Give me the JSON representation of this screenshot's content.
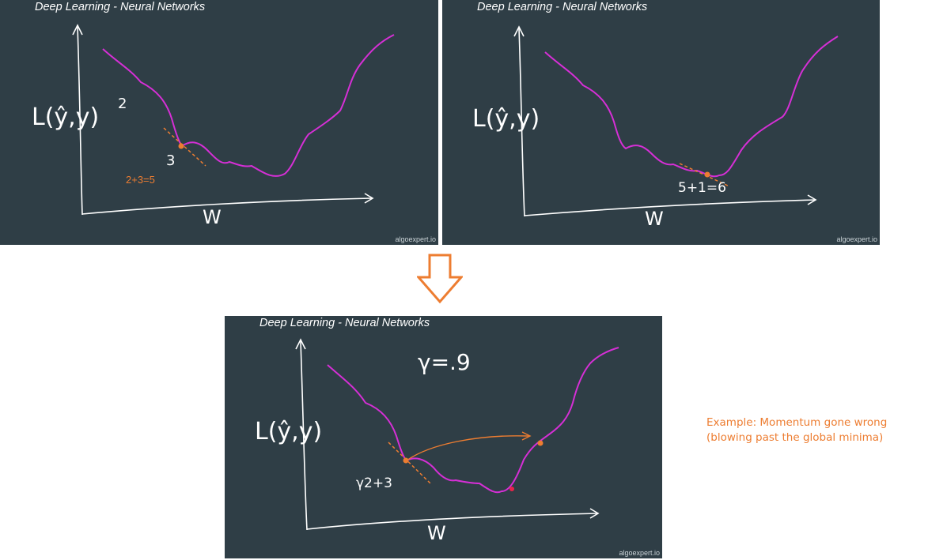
{
  "panels": [
    {
      "title": "Deep Learning - Neural Networks",
      "watermark": "algoexpert.io",
      "y_axis_label": "L(ŷ,y)",
      "x_axis_label": "W",
      "annotations": [
        "2",
        "3"
      ],
      "sum_label": "2+3=5"
    },
    {
      "title": "Deep Learning - Neural Networks",
      "watermark": "algoexpert.io",
      "y_axis_label": "L(ŷ,y)",
      "x_axis_label": "W",
      "sum_label": "5+1=6"
    },
    {
      "title": "Deep Learning - Neural Networks",
      "watermark": "algoexpert.io",
      "y_axis_label": "L(ŷ,y)",
      "x_axis_label": "W",
      "gamma_label": "γ=.9",
      "formula_label": "γ2+3"
    }
  ],
  "note": {
    "line1": "Example: Momentum gone wrong",
    "line2": "(blowing past the global minima)"
  },
  "colors": {
    "panel_bg": "#2f3e46",
    "curve": "#d62fd6",
    "accent": "#ed7d31",
    "minimum_dot": "#e8234a",
    "ink": "#ffffff"
  }
}
